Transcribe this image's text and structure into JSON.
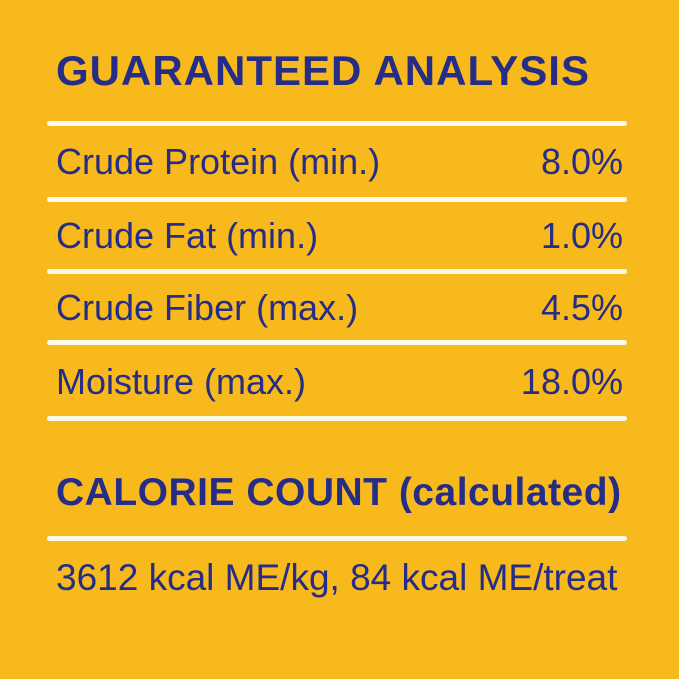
{
  "label": {
    "colors": {
      "background": "#F7B91B",
      "text": "#252D87",
      "divider": "#FBF9EA"
    },
    "guaranteed_analysis": {
      "title": "GUARANTEED ANALYSIS",
      "rows": [
        {
          "name": "Crude Protein (min.)",
          "value": "8.0%"
        },
        {
          "name": "Crude Fat (min.)",
          "value": "1.0%"
        },
        {
          "name": "Crude Fiber (max.)",
          "value": "4.5%"
        },
        {
          "name": "Moisture (max.)",
          "value": "18.0%"
        }
      ]
    },
    "calorie_count": {
      "title": "CALORIE COUNT (calculated)",
      "value": "3612 kcal ME/kg, 84 kcal ME/treat"
    }
  }
}
